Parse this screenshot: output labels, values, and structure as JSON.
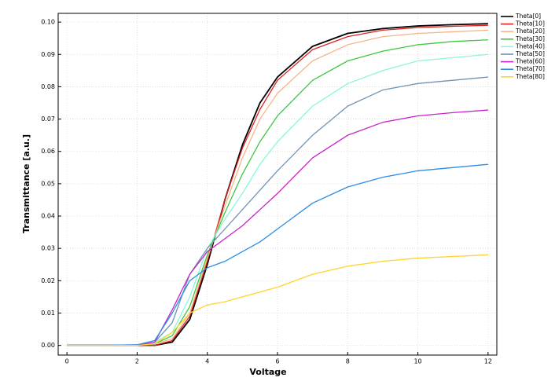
{
  "chart_data": {
    "type": "line",
    "xlabel": "Voltage",
    "ylabel": "Transmittance [a.u.]",
    "x": [
      0,
      1,
      2,
      2.5,
      3,
      3.5,
      4,
      4.5,
      5,
      5.5,
      6,
      7,
      8,
      9,
      10,
      11,
      12
    ],
    "series": [
      {
        "name": "Theta[0]",
        "color": "#000000",
        "values": [
          0,
          0,
          0,
          0,
          0.001,
          0.008,
          0.025,
          0.045,
          0.062,
          0.075,
          0.083,
          0.0925,
          0.0965,
          0.098,
          0.0988,
          0.0992,
          0.0995
        ]
      },
      {
        "name": "Theta[10]",
        "color": "#e0211f",
        "values": [
          0,
          0,
          0,
          0,
          0.0015,
          0.009,
          0.026,
          0.045,
          0.061,
          0.073,
          0.082,
          0.0915,
          0.0955,
          0.0975,
          0.0983,
          0.0987,
          0.099
        ]
      },
      {
        "name": "Theta[20]",
        "color": "#f7b48a",
        "values": [
          0,
          0,
          0,
          0.0005,
          0.002,
          0.01,
          0.027,
          0.043,
          0.058,
          0.07,
          0.078,
          0.088,
          0.093,
          0.0955,
          0.0965,
          0.097,
          0.0975
        ]
      },
      {
        "name": "Theta[30]",
        "color": "#3ec83e",
        "values": [
          0,
          0,
          0,
          0.0005,
          0.003,
          0.012,
          0.028,
          0.041,
          0.053,
          0.063,
          0.071,
          0.082,
          0.088,
          0.091,
          0.093,
          0.094,
          0.0945
        ]
      },
      {
        "name": "Theta[40]",
        "color": "#8cf5dc",
        "values": [
          0,
          0,
          0,
          0.001,
          0.004,
          0.015,
          0.03,
          0.039,
          0.047,
          0.056,
          0.063,
          0.074,
          0.081,
          0.085,
          0.088,
          0.089,
          0.09
        ]
      },
      {
        "name": "Theta[50]",
        "color": "#7093b4",
        "values": [
          0,
          0,
          0,
          0.001,
          0.007,
          0.022,
          0.03,
          0.036,
          0.042,
          0.048,
          0.054,
          0.065,
          0.074,
          0.079,
          0.081,
          0.082,
          0.083
        ]
      },
      {
        "name": "Theta[60]",
        "color": "#c822c8",
        "values": [
          0,
          0,
          0,
          0.001,
          0.011,
          0.022,
          0.029,
          0.033,
          0.037,
          0.042,
          0.047,
          0.058,
          0.065,
          0.069,
          0.071,
          0.072,
          0.0728
        ]
      },
      {
        "name": "Theta[70]",
        "color": "#2c8ce6",
        "values": [
          0,
          0,
          0.0002,
          0.0015,
          0.01,
          0.02,
          0.024,
          0.026,
          0.029,
          0.032,
          0.036,
          0.044,
          0.049,
          0.052,
          0.054,
          0.055,
          0.056
        ]
      },
      {
        "name": "Theta[80]",
        "color": "#ffd42a",
        "values": [
          0,
          0,
          0,
          0.0005,
          0.004,
          0.01,
          0.0125,
          0.0135,
          0.015,
          0.0165,
          0.018,
          0.022,
          0.0245,
          0.026,
          0.027,
          0.0275,
          0.028
        ]
      }
    ],
    "xlim": [
      -0.25,
      12.25
    ],
    "xticks": [
      0,
      2,
      4,
      6,
      8,
      10,
      12
    ],
    "ylim": [
      -0.003,
      0.1027
    ],
    "yticks": [
      {
        "value": 0,
        "label": "0.00"
      },
      {
        "value": 0.01,
        "label": "0.01"
      },
      {
        "value": 0.02,
        "label": "0.02"
      },
      {
        "value": 0.03,
        "label": "0.03"
      },
      {
        "value": 0.04,
        "label": "0.04"
      },
      {
        "value": 0.05,
        "label": "0.05"
      },
      {
        "value": 0.06,
        "label": "0.06"
      },
      {
        "value": 0.07,
        "label": "0.07"
      },
      {
        "value": 0.08,
        "label": "0.08"
      },
      {
        "value": 0.09,
        "label": "0.09"
      },
      {
        "value": 0.1,
        "label": "0.10"
      }
    ],
    "grid": true,
    "legend": "outside-right"
  }
}
